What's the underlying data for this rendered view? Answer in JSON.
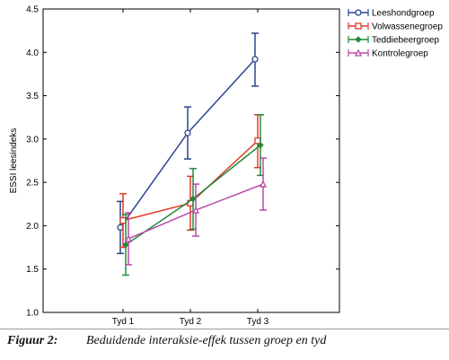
{
  "chart_data": {
    "type": "line",
    "title": "",
    "xlabel": "",
    "ylabel": "ESSI leesindeks",
    "ylim": [
      1.0,
      4.5
    ],
    "yticks": [
      "1.0",
      "1.5",
      "2.0",
      "2.5",
      "3.0",
      "3.5",
      "4.0",
      "4.5"
    ],
    "categories": [
      "Tyd 1",
      "Tyd 2",
      "Tyd 3"
    ],
    "legend_position": "right",
    "grid": false,
    "series": [
      {
        "name": "Leeshondgroep",
        "color": "#2b4590",
        "marker": "circle",
        "values": [
          1.98,
          3.07,
          3.92
        ],
        "lower": [
          1.68,
          2.77,
          3.61
        ],
        "upper": [
          2.28,
          3.37,
          4.22
        ]
      },
      {
        "name": "Volwassenegroep",
        "color": "#e03a2a",
        "marker": "square",
        "values": [
          2.06,
          2.26,
          2.98
        ],
        "lower": [
          1.75,
          1.95,
          2.67
        ],
        "upper": [
          2.37,
          2.57,
          3.28
        ]
      },
      {
        "name": "Teddiebeergroep",
        "color": "#248a3a",
        "marker": "diamond",
        "values": [
          1.78,
          2.31,
          2.93
        ],
        "lower": [
          1.43,
          1.96,
          2.58
        ],
        "upper": [
          2.13,
          2.66,
          3.28
        ]
      },
      {
        "name": "Kontrolegroep",
        "color": "#b84aa8",
        "marker": "triangle",
        "values": [
          1.85,
          2.18,
          2.48
        ],
        "lower": [
          1.55,
          1.88,
          2.18
        ],
        "upper": [
          2.15,
          2.48,
          2.78
        ]
      }
    ]
  },
  "caption": {
    "label": "Figuur 2:",
    "text": "Beduidende interaksie-effek tussen groep en tyd"
  }
}
